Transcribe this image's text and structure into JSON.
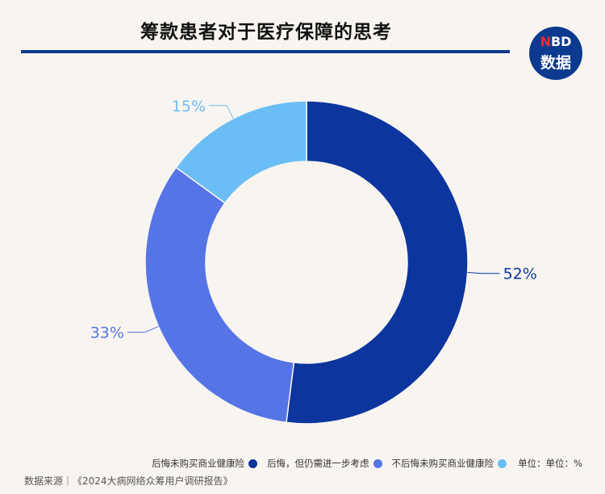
{
  "title": "筹款患者对于医疗保障的思考",
  "logo": {
    "line1_n": "N",
    "line1_rest": "BD",
    "line2": "数据"
  },
  "chart_data": {
    "type": "pie",
    "donut": true,
    "slices": [
      {
        "label": "后悔未购买商业健康险",
        "value": 52,
        "display": "52%",
        "color": "#0c359e"
      },
      {
        "label": "后悔，但仍需进一步考虑",
        "value": 33,
        "display": "33%",
        "color": "#5574e6"
      },
      {
        "label": "不后悔未购买商业健康险",
        "value": 15,
        "display": "15%",
        "color": "#6bbef5"
      }
    ],
    "legend_position": "bottom-right",
    "unit_label": "单位：单位：%"
  },
  "source": "数据来源｜《2024大病网络众筹用户调研报告》"
}
